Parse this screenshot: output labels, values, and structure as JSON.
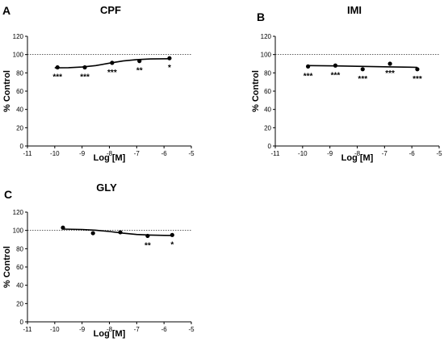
{
  "chart_data": [
    {
      "panel": "A",
      "type": "scatter",
      "title": "CPF",
      "xlabel": "Log [M]",
      "ylabel": "% Control",
      "xlim": [
        -11,
        -5
      ],
      "ylim": [
        0,
        120
      ],
      "xticks": [
        -11,
        -10,
        -9,
        -8,
        -7,
        -6,
        -5
      ],
      "yticks": [
        0,
        20,
        40,
        60,
        80,
        100,
        120
      ],
      "reference_line": 100,
      "points": [
        {
          "x": -9.9,
          "y": 86,
          "sig": "***"
        },
        {
          "x": -8.9,
          "y": 86,
          "sig": "***"
        },
        {
          "x": -7.9,
          "y": 91,
          "sig": "***"
        },
        {
          "x": -6.9,
          "y": 93,
          "sig": "**"
        },
        {
          "x": -5.8,
          "y": 96,
          "sig": "*"
        }
      ],
      "fit_curve": [
        {
          "x": -10.0,
          "y": 85.5
        },
        {
          "x": -9.5,
          "y": 85.7
        },
        {
          "x": -9.0,
          "y": 86.4
        },
        {
          "x": -8.5,
          "y": 88.0
        },
        {
          "x": -8.0,
          "y": 90.6
        },
        {
          "x": -7.5,
          "y": 93.0
        },
        {
          "x": -7.0,
          "y": 94.5
        },
        {
          "x": -6.5,
          "y": 95.2
        },
        {
          "x": -5.8,
          "y": 95.5
        }
      ]
    },
    {
      "panel": "B",
      "type": "scatter",
      "title": "IMI",
      "xlabel": "Log [M]",
      "ylabel": "% Control",
      "xlim": [
        -11,
        -5
      ],
      "ylim": [
        0,
        120
      ],
      "xticks": [
        -11,
        -10,
        -9,
        -8,
        -7,
        -6,
        -5
      ],
      "yticks": [
        0,
        20,
        40,
        60,
        80,
        100,
        120
      ],
      "reference_line": 100,
      "points": [
        {
          "x": -9.8,
          "y": 87,
          "sig": "***"
        },
        {
          "x": -8.8,
          "y": 88,
          "sig": "***"
        },
        {
          "x": -7.8,
          "y": 84,
          "sig": "***"
        },
        {
          "x": -6.8,
          "y": 90,
          "sig": "***"
        },
        {
          "x": -5.8,
          "y": 84,
          "sig": "***"
        }
      ],
      "fit_curve": [
        {
          "x": -9.8,
          "y": 88.0
        },
        {
          "x": -8.8,
          "y": 87.6
        },
        {
          "x": -7.8,
          "y": 87.1
        },
        {
          "x": -6.8,
          "y": 86.6
        },
        {
          "x": -5.8,
          "y": 86.0
        }
      ]
    },
    {
      "panel": "C",
      "type": "scatter",
      "title": "GLY",
      "xlabel": "Log [M]",
      "ylabel": "% Control",
      "xlim": [
        -11,
        -5
      ],
      "ylim": [
        0,
        120
      ],
      "xticks": [
        -11,
        -10,
        -9,
        -8,
        -7,
        -6,
        -5
      ],
      "yticks": [
        0,
        20,
        40,
        60,
        80,
        100,
        120
      ],
      "reference_line": 100,
      "points": [
        {
          "x": -9.7,
          "y": 103,
          "sig": ""
        },
        {
          "x": -8.6,
          "y": 97,
          "sig": ""
        },
        {
          "x": -7.6,
          "y": 98,
          "sig": ""
        },
        {
          "x": -6.6,
          "y": 94,
          "sig": "**"
        },
        {
          "x": -5.7,
          "y": 95,
          "sig": "*"
        }
      ],
      "fit_curve": [
        {
          "x": -9.7,
          "y": 101.5
        },
        {
          "x": -9.0,
          "y": 101.0
        },
        {
          "x": -8.5,
          "y": 100.2
        },
        {
          "x": -8.0,
          "y": 98.8
        },
        {
          "x": -7.5,
          "y": 97.0
        },
        {
          "x": -7.0,
          "y": 95.6
        },
        {
          "x": -6.5,
          "y": 94.9
        },
        {
          "x": -6.0,
          "y": 94.6
        },
        {
          "x": -5.7,
          "y": 94.5
        }
      ]
    }
  ]
}
